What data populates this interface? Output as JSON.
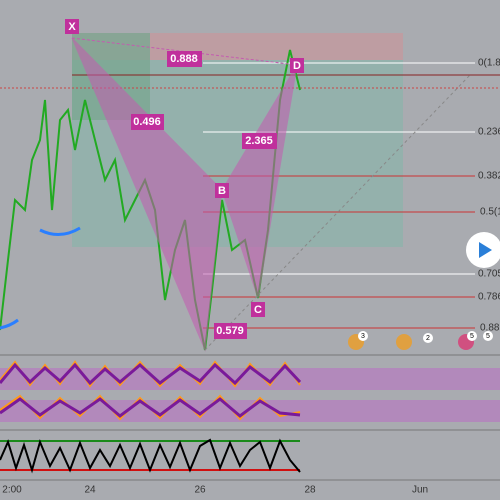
{
  "pattern": {
    "points": {
      "x": "X",
      "b": "B",
      "c": "C",
      "d": "D"
    },
    "ratios": {
      "xb": "0.496",
      "ac": "0.579",
      "bd": "2.365",
      "xd": "0.888"
    }
  },
  "fib_levels": [
    "0(1.8",
    "0.236",
    "0.382",
    "0.5(1",
    "0.705",
    "0.786",
    "0.88"
  ],
  "time_axis": [
    "2:00",
    "24",
    "26",
    "28",
    "Jun"
  ],
  "event_badges": [
    "3",
    "2",
    "5",
    "5"
  ]
}
